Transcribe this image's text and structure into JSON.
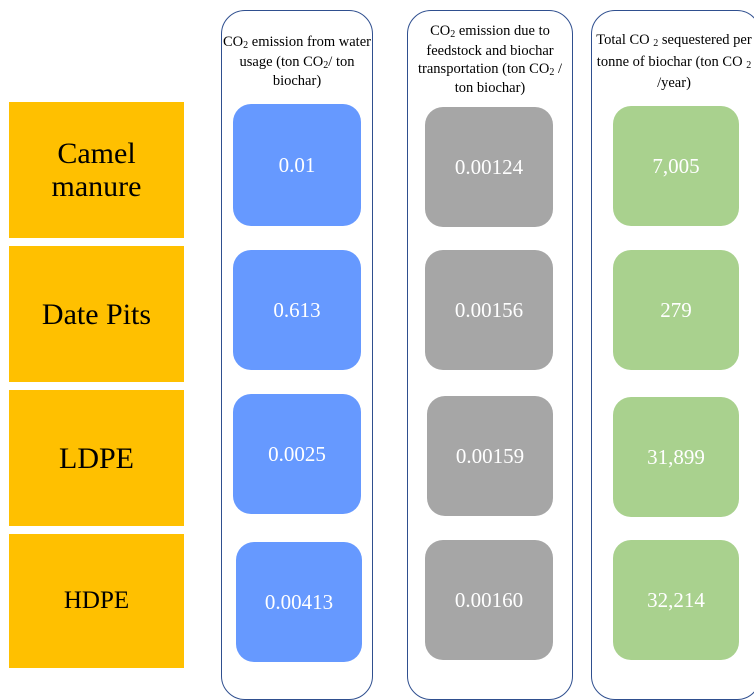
{
  "rows": [
    {
      "label": "Camel manure"
    },
    {
      "label": "Date Pits"
    },
    {
      "label": "LDPE"
    },
    {
      "label": "HDPE"
    }
  ],
  "columns": [
    {
      "header": {
        "p1": "CO",
        "s1": "2",
        "p2": " emission from water usage (ton ",
        "p3": "CO",
        "s2": "2",
        "p4": "/ ton biochar)"
      },
      "values": [
        "0.01",
        "0.613",
        "0.0025",
        "0.00413"
      ],
      "color": "#6699ff"
    },
    {
      "header": {
        "p1": "CO",
        "s1": "2",
        "p2": " emission due to feedstock and biochar transportation (ton ",
        "p3": "CO",
        "s2": "2",
        "p4": " / ton biochar)"
      },
      "values": [
        "0.00124",
        "0.00156",
        "0.00159",
        "0.00160"
      ],
      "color": "#a6a6a6"
    },
    {
      "header": {
        "p1": "Total CO ",
        "s1": "2",
        "p2": " sequestered per tonne of biochar (ton CO ",
        "s2": "2",
        "p3": " /year)"
      },
      "values": [
        "7,005",
        "279",
        "31,899",
        "32,214"
      ],
      "color": "#a9d18e"
    }
  ],
  "colors": {
    "row_label_bg": "#ffc000",
    "border": "#2f4f8f"
  }
}
